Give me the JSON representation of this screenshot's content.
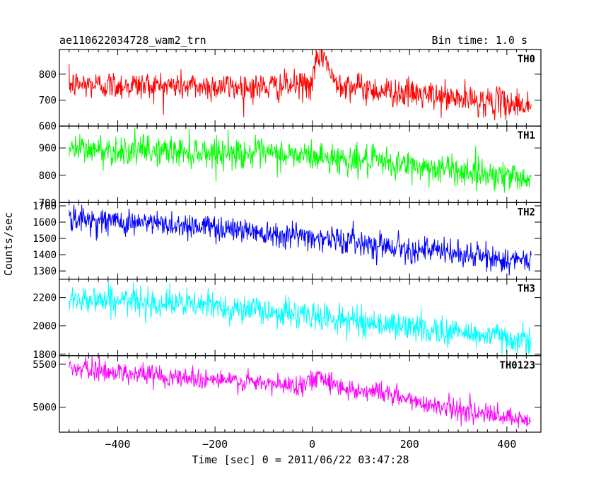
{
  "header": {
    "left_title": "ae110622034728_wam2_trn",
    "right_title": "Bin time: 1.0 s"
  },
  "xlabel": "Time [sec] 0 = 2011/06/22 03:47:28",
  "ylabel": "Counts/sec",
  "chart_data": {
    "type": "line",
    "xlim": [
      -520,
      470
    ],
    "x_data_range": [
      -500,
      450
    ],
    "bin_time_s": 1.0,
    "x_ticks": [
      -400,
      -200,
      0,
      200,
      400
    ],
    "x_tick_labels": [
      "−400",
      "−200",
      "0",
      "200",
      "400"
    ],
    "panels": [
      {
        "name": "TH0",
        "color": "#ff0000",
        "ylim": [
          600,
          895
        ],
        "y_ticks": [
          600,
          700,
          800
        ],
        "y_tick_labels": [
          "600",
          "700",
          "800"
        ],
        "profile": [
          [
            -500,
            760
          ],
          [
            -100,
            750
          ],
          [
            0,
            760
          ],
          [
            10,
            860
          ],
          [
            25,
            880
          ],
          [
            40,
            780
          ],
          [
            100,
            745
          ],
          [
            300,
            705
          ],
          [
            450,
            680
          ]
        ],
        "noise_sd": 28
      },
      {
        "name": "TH1",
        "color": "#00ff00",
        "ylim": [
          700,
          980
        ],
        "y_ticks": [
          700,
          800,
          900
        ],
        "y_tick_labels": [
          "700",
          "800",
          "900"
        ],
        "profile": [
          [
            -500,
            895
          ],
          [
            -200,
            885
          ],
          [
            0,
            870
          ],
          [
            200,
            835
          ],
          [
            450,
            790
          ]
        ],
        "noise_sd": 28
      },
      {
        "name": "TH2",
        "color": "#0000ff",
        "ylim": [
          1250,
          1720
        ],
        "y_ticks": [
          1300,
          1400,
          1500,
          1600,
          1700
        ],
        "y_tick_labels": [
          "1300",
          "1400",
          "1500",
          "1600",
          "1700"
        ],
        "profile": [
          [
            -500,
            1620
          ],
          [
            -200,
            1570
          ],
          [
            0,
            1510
          ],
          [
            200,
            1440
          ],
          [
            450,
            1350
          ]
        ],
        "noise_sd": 40
      },
      {
        "name": "TH3",
        "color": "#00ffff",
        "ylim": [
          1790,
          2330
        ],
        "y_ticks": [
          1800,
          2000,
          2200
        ],
        "y_tick_labels": [
          "1800",
          "2000",
          "2200"
        ],
        "profile": [
          [
            -500,
            2200
          ],
          [
            -200,
            2140
          ],
          [
            0,
            2070
          ],
          [
            200,
            1990
          ],
          [
            450,
            1900
          ]
        ],
        "noise_sd": 50
      },
      {
        "name": "TH0123",
        "color": "#ff00ff",
        "ylim": [
          4710,
          5600
        ],
        "y_ticks": [
          5000,
          5500
        ],
        "y_tick_labels": [
          "5000",
          "5500"
        ],
        "profile": [
          [
            -500,
            5450
          ],
          [
            -200,
            5320
          ],
          [
            -50,
            5250
          ],
          [
            0,
            5300
          ],
          [
            15,
            5390
          ],
          [
            50,
            5250
          ],
          [
            100,
            5180
          ],
          [
            130,
            5200
          ],
          [
            200,
            5080
          ],
          [
            450,
            4820
          ]
        ],
        "noise_sd": 60
      }
    ]
  }
}
